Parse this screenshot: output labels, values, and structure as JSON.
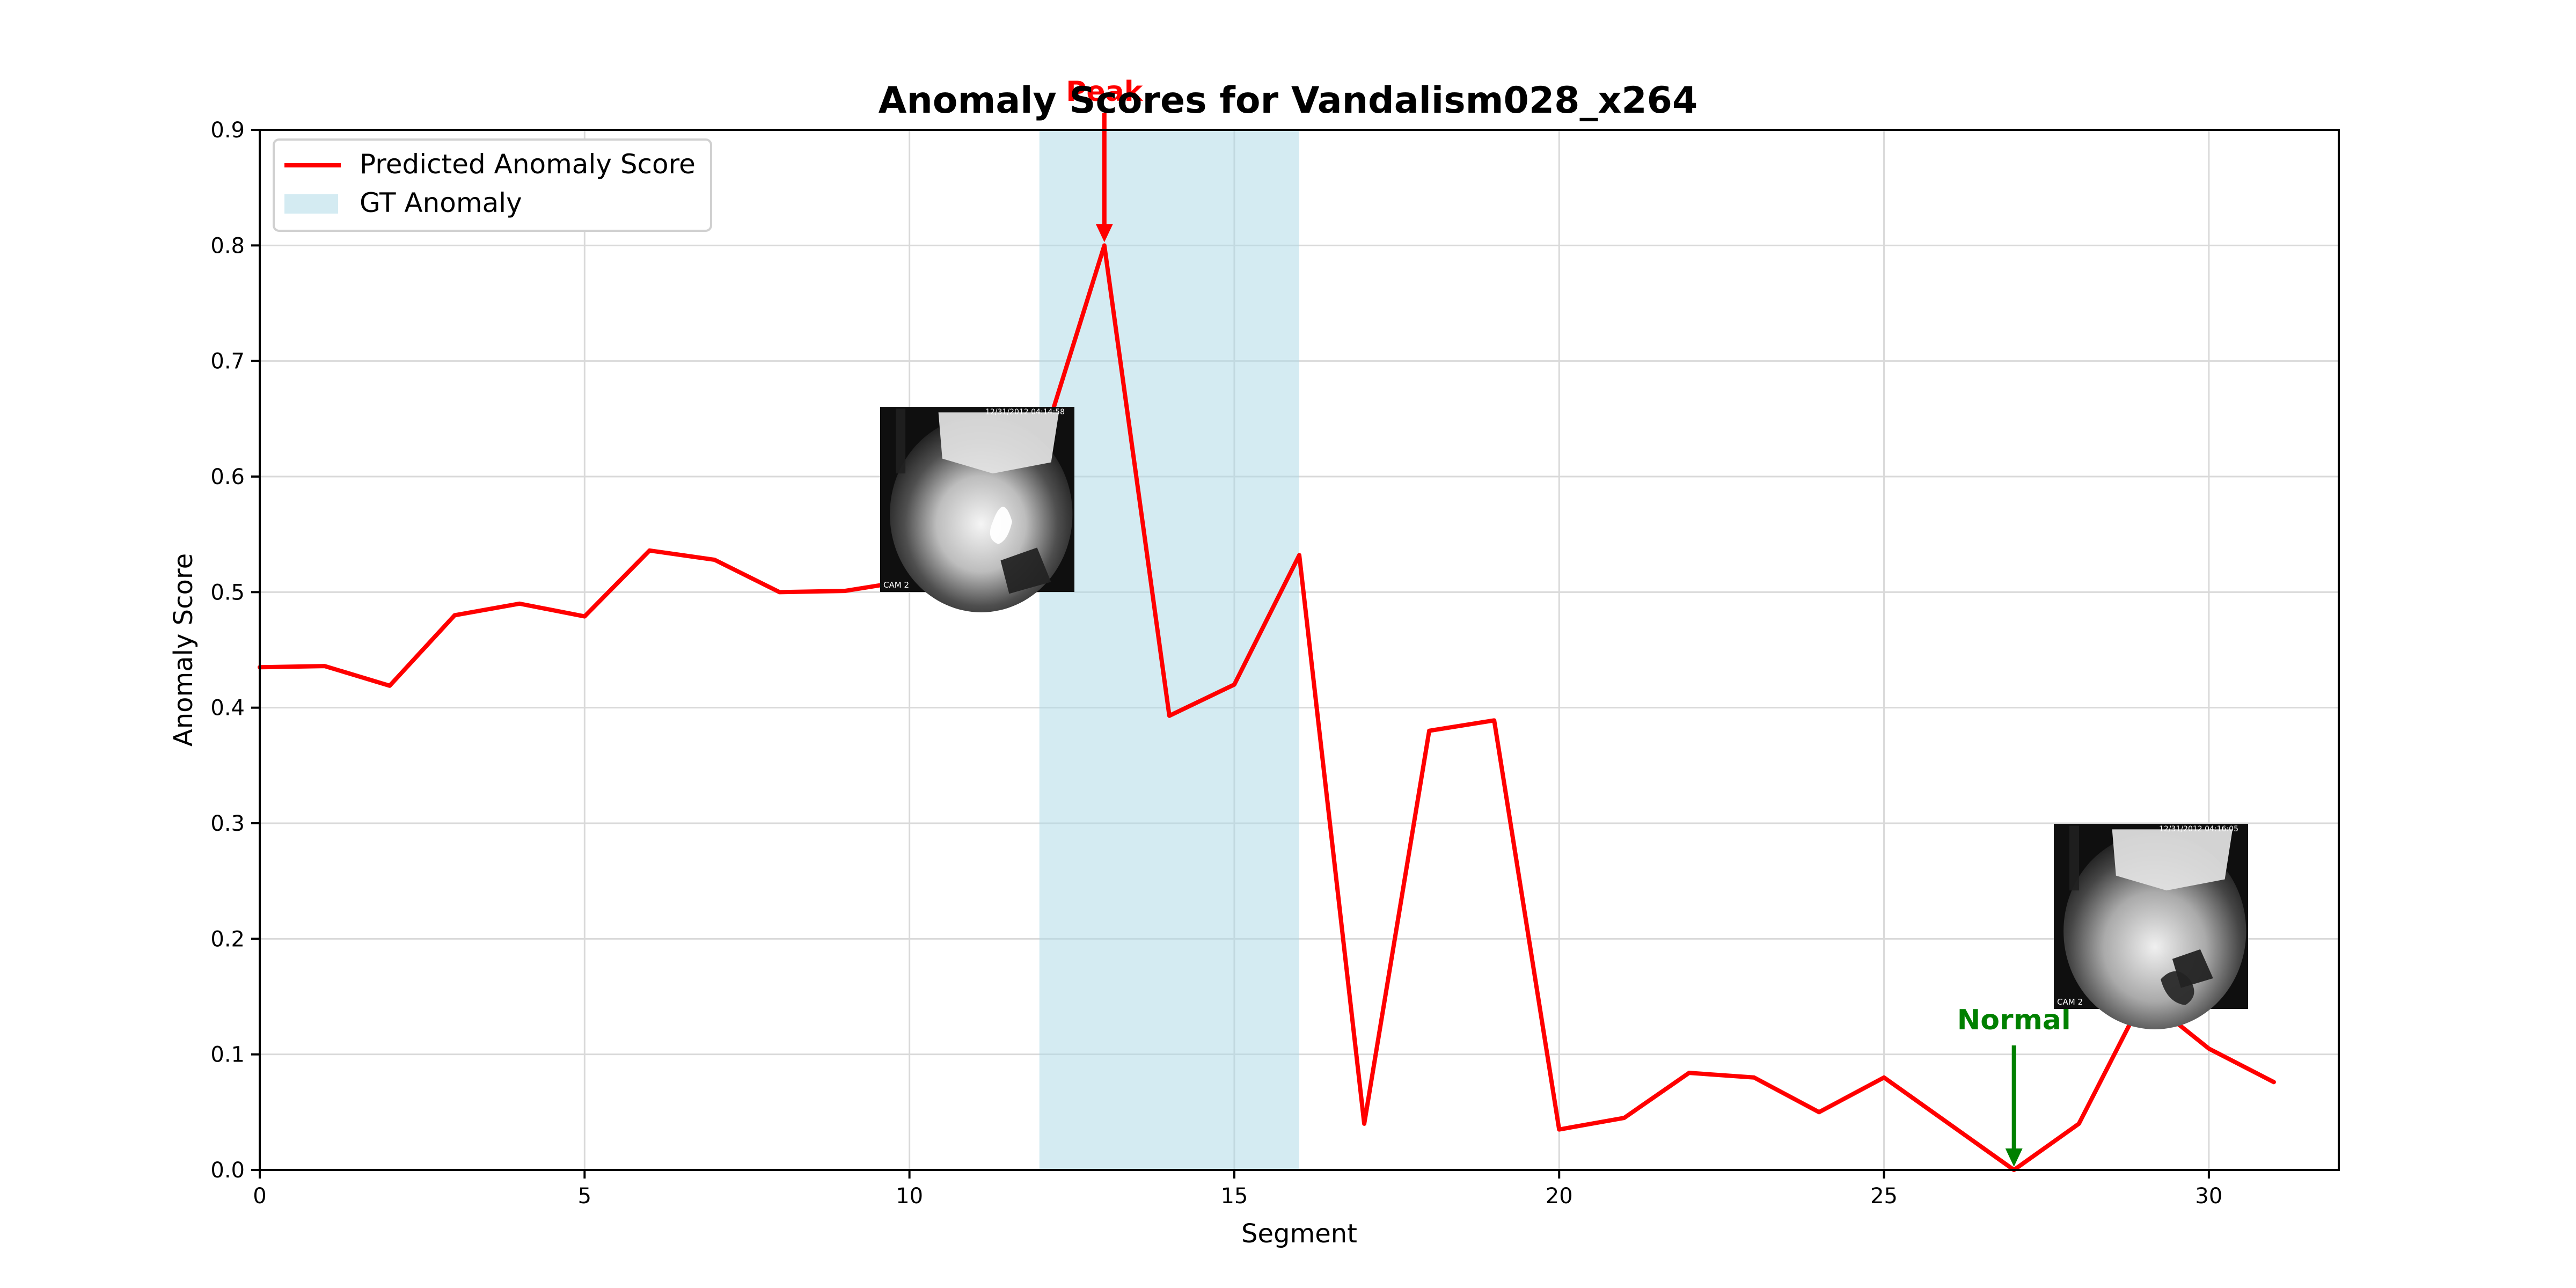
{
  "chart_data": {
    "type": "line",
    "title": "Anomaly Scores for Vandalism028_x264",
    "xlabel": "Segment",
    "ylabel": "Anomaly Score",
    "xlim": [
      0,
      32
    ],
    "ylim": [
      0,
      0.9
    ],
    "grid": true,
    "legend_position": "top-left",
    "x_ticks": [
      0,
      5,
      10,
      15,
      20,
      25,
      30
    ],
    "y_ticks": [
      0.0,
      0.1,
      0.2,
      0.3,
      0.4,
      0.5,
      0.6,
      0.7,
      0.8,
      0.9
    ],
    "x_tick_labels": [
      "0",
      "5",
      "10",
      "15",
      "20",
      "25",
      "30"
    ],
    "y_tick_labels": [
      "0.0",
      "0.1",
      "0.2",
      "0.3",
      "0.4",
      "0.5",
      "0.6",
      "0.7",
      "0.8",
      "0.9"
    ],
    "series": [
      {
        "name": "Predicted Anomaly Score",
        "color": "#ff0000",
        "x": [
          0,
          1,
          2,
          3,
          4,
          5,
          6,
          7,
          8,
          9,
          10,
          11,
          12,
          13,
          14,
          15,
          16,
          17,
          18,
          19,
          20,
          21,
          22,
          23,
          24,
          25,
          26,
          27,
          28,
          29,
          30,
          31
        ],
        "values": [
          0.435,
          0.436,
          0.419,
          0.48,
          0.49,
          0.479,
          0.536,
          0.528,
          0.5,
          0.501,
          0.51,
          0.55,
          0.62,
          0.8,
          0.393,
          0.42,
          0.532,
          0.04,
          0.38,
          0.389,
          0.035,
          0.045,
          0.084,
          0.08,
          0.05,
          0.08,
          0.04,
          0.0,
          0.04,
          0.15,
          0.105,
          0.076
        ]
      }
    ],
    "gt_anomaly": {
      "name": "GT Anomaly",
      "start": 12,
      "end": 16,
      "color": "#add8e6"
    },
    "annotations": [
      {
        "text": "Peak",
        "x": 13,
        "y": 0.8,
        "color": "#ff0000"
      },
      {
        "text": "Normal",
        "x": 27,
        "y": 0.0,
        "color": "#008000"
      }
    ],
    "frames": [
      {
        "at_segment": 13,
        "timestamp": "12/31/2012 04:14:58",
        "camera": "CAM 2"
      },
      {
        "at_segment": 27,
        "timestamp": "12/31/2012 04:16:05",
        "camera": "CAM 2"
      }
    ]
  }
}
